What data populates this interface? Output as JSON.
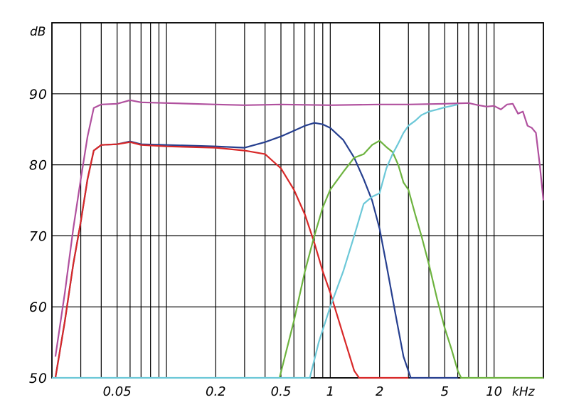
{
  "chart_data": {
    "type": "line",
    "title": "",
    "xlabel": "kHz",
    "ylabel": "dB",
    "x_scale": "log",
    "xlim": [
      0.02,
      20
    ],
    "ylim": [
      50,
      100
    ],
    "grid": true,
    "y_ticks": [
      {
        "value": 50,
        "label": "50"
      },
      {
        "value": 60,
        "label": "60"
      },
      {
        "value": 70,
        "label": "70"
      },
      {
        "value": 80,
        "label": "80"
      },
      {
        "value": 90,
        "label": "90"
      }
    ],
    "x_tick_labels": [
      {
        "value": 0.05,
        "label": "0.05"
      },
      {
        "value": 0.2,
        "label": "0.2"
      },
      {
        "value": 0.5,
        "label": "0.5"
      },
      {
        "value": 1,
        "label": "1"
      },
      {
        "value": 2,
        "label": "2"
      },
      {
        "value": 5,
        "label": "5"
      },
      {
        "value": 10,
        "label": "10"
      }
    ],
    "series": [
      {
        "color": "#b0509e",
        "points": [
          [
            0.021,
            53
          ],
          [
            0.024,
            62
          ],
          [
            0.027,
            71
          ],
          [
            0.03,
            78
          ],
          [
            0.033,
            84
          ],
          [
            0.036,
            88
          ],
          [
            0.04,
            88.5
          ],
          [
            0.05,
            88.6
          ],
          [
            0.06,
            89.1
          ],
          [
            0.07,
            88.8
          ],
          [
            0.1,
            88.7
          ],
          [
            0.2,
            88.5
          ],
          [
            0.3,
            88.4
          ],
          [
            0.5,
            88.5
          ],
          [
            1,
            88.4
          ],
          [
            2,
            88.5
          ],
          [
            3,
            88.5
          ],
          [
            5,
            88.6
          ],
          [
            7,
            88.7
          ],
          [
            8,
            88.4
          ],
          [
            9,
            88.2
          ],
          [
            10,
            88.3
          ],
          [
            11,
            87.8
          ],
          [
            12,
            88.5
          ],
          [
            13,
            88.6
          ],
          [
            14,
            87.2
          ],
          [
            15,
            87.5
          ],
          [
            16,
            85.5
          ],
          [
            17,
            85.2
          ],
          [
            18,
            84.5
          ],
          [
            19,
            80
          ],
          [
            20,
            75
          ]
        ]
      },
      {
        "color": "#263f8f",
        "points": [
          [
            0.021,
            50
          ],
          [
            0.024,
            58
          ],
          [
            0.027,
            66
          ],
          [
            0.03,
            72
          ],
          [
            0.033,
            78
          ],
          [
            0.036,
            82
          ],
          [
            0.04,
            82.8
          ],
          [
            0.05,
            82.9
          ],
          [
            0.06,
            83.3
          ],
          [
            0.07,
            82.9
          ],
          [
            0.1,
            82.8
          ],
          [
            0.2,
            82.6
          ],
          [
            0.3,
            82.4
          ],
          [
            0.4,
            83.2
          ],
          [
            0.5,
            84
          ],
          [
            0.6,
            84.8
          ],
          [
            0.7,
            85.5
          ],
          [
            0.8,
            85.9
          ],
          [
            0.9,
            85.7
          ],
          [
            1,
            85.2
          ],
          [
            1.2,
            83.5
          ],
          [
            1.4,
            81
          ],
          [
            1.6,
            78
          ],
          [
            1.8,
            75
          ],
          [
            2,
            71
          ],
          [
            2.2,
            66
          ],
          [
            2.5,
            59
          ],
          [
            2.8,
            53
          ],
          [
            3.1,
            50
          ],
          [
            6,
            50
          ]
        ]
      },
      {
        "color": "#d82828",
        "points": [
          [
            0.021,
            50
          ],
          [
            0.024,
            58
          ],
          [
            0.027,
            66
          ],
          [
            0.03,
            72
          ],
          [
            0.033,
            78
          ],
          [
            0.036,
            82
          ],
          [
            0.04,
            82.8
          ],
          [
            0.05,
            82.9
          ],
          [
            0.06,
            83.2
          ],
          [
            0.07,
            82.8
          ],
          [
            0.1,
            82.6
          ],
          [
            0.2,
            82.4
          ],
          [
            0.3,
            82
          ],
          [
            0.4,
            81.5
          ],
          [
            0.5,
            79.5
          ],
          [
            0.6,
            76.5
          ],
          [
            0.7,
            73
          ],
          [
            0.8,
            69
          ],
          [
            0.9,
            65
          ],
          [
            1,
            62
          ],
          [
            1.2,
            56
          ],
          [
            1.4,
            51
          ],
          [
            1.5,
            50
          ],
          [
            3,
            50
          ]
        ]
      },
      {
        "color": "#6db33f",
        "points": [
          [
            0.49,
            50
          ],
          [
            0.6,
            58
          ],
          [
            0.7,
            65
          ],
          [
            0.8,
            70
          ],
          [
            0.9,
            74
          ],
          [
            1,
            76.5
          ],
          [
            1.2,
            79
          ],
          [
            1.4,
            81
          ],
          [
            1.6,
            81.5
          ],
          [
            1.8,
            82.8
          ],
          [
            2,
            83.4
          ],
          [
            2.2,
            82.5
          ],
          [
            2.4,
            81.8
          ],
          [
            2.6,
            80
          ],
          [
            2.8,
            77.5
          ],
          [
            3,
            76.5
          ],
          [
            3.3,
            73
          ],
          [
            3.6,
            70
          ],
          [
            4,
            66
          ],
          [
            4.5,
            61
          ],
          [
            5,
            57
          ],
          [
            5.5,
            54
          ],
          [
            6,
            51
          ],
          [
            6.3,
            50
          ],
          [
            20,
            50
          ]
        ]
      },
      {
        "color": "#6cc8d8",
        "points": [
          [
            0.02,
            50
          ],
          [
            0.75,
            50
          ],
          [
            0.85,
            55
          ],
          [
            1,
            60
          ],
          [
            1.2,
            65
          ],
          [
            1.4,
            70
          ],
          [
            1.6,
            74.5
          ],
          [
            1.8,
            75.5
          ],
          [
            2,
            76
          ],
          [
            2.2,
            79.5
          ],
          [
            2.4,
            81.5
          ],
          [
            2.6,
            83
          ],
          [
            2.8,
            84.5
          ],
          [
            3,
            85.5
          ],
          [
            3.3,
            86.2
          ],
          [
            3.6,
            87
          ],
          [
            4,
            87.5
          ],
          [
            4.5,
            87.8
          ],
          [
            5,
            88.1
          ],
          [
            5.5,
            88.3
          ],
          [
            6,
            88.5
          ]
        ]
      }
    ]
  }
}
